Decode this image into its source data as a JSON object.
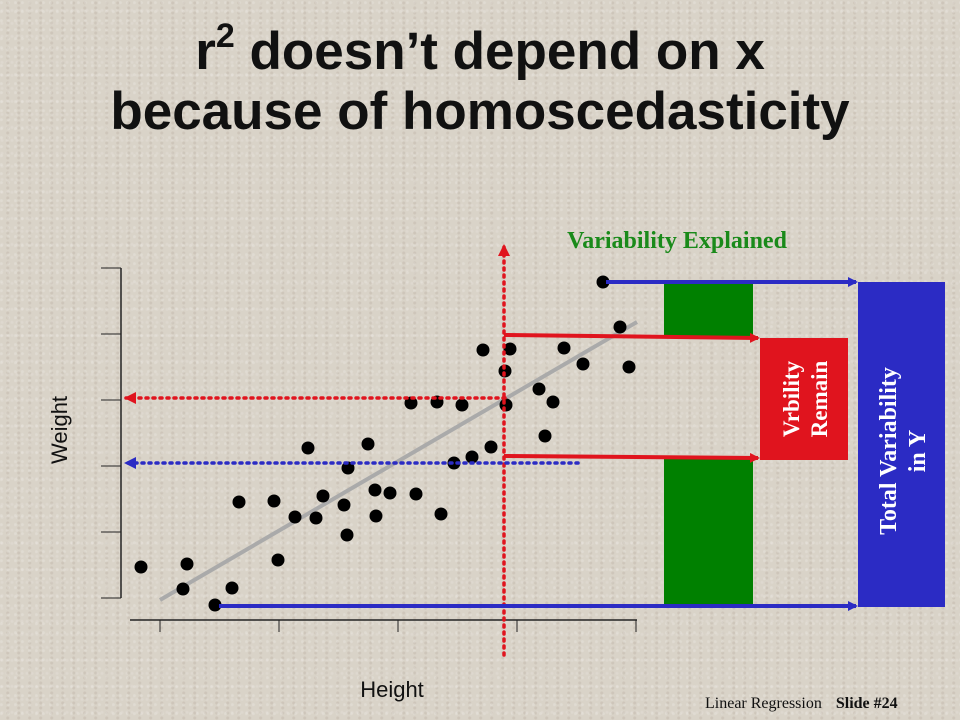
{
  "title": {
    "r": "r",
    "exponent": "2",
    "line1_rest": " doesn’t depend on x",
    "line2": "because of homoscedasticity"
  },
  "labels": {
    "explained": "Variability Explained",
    "remain_line1": "Vrbility",
    "remain_line2": "Remain",
    "total_line1": "Total Variability",
    "total_line2": "in Y",
    "x_axis": "Height",
    "y_axis": "Weight"
  },
  "footer": {
    "course": "Linear Regression",
    "slide": "Slide #24"
  },
  "colors": {
    "green_bar": "#008000",
    "red_box": "#e0141e",
    "blue_box": "#2b2bc4",
    "red_text": "#e0141e",
    "green_text": "#1a8a1a",
    "regression_line": "#aaaaaa",
    "arrow_red": "#e0141e",
    "arrow_blue": "#2b2bc4"
  }
}
